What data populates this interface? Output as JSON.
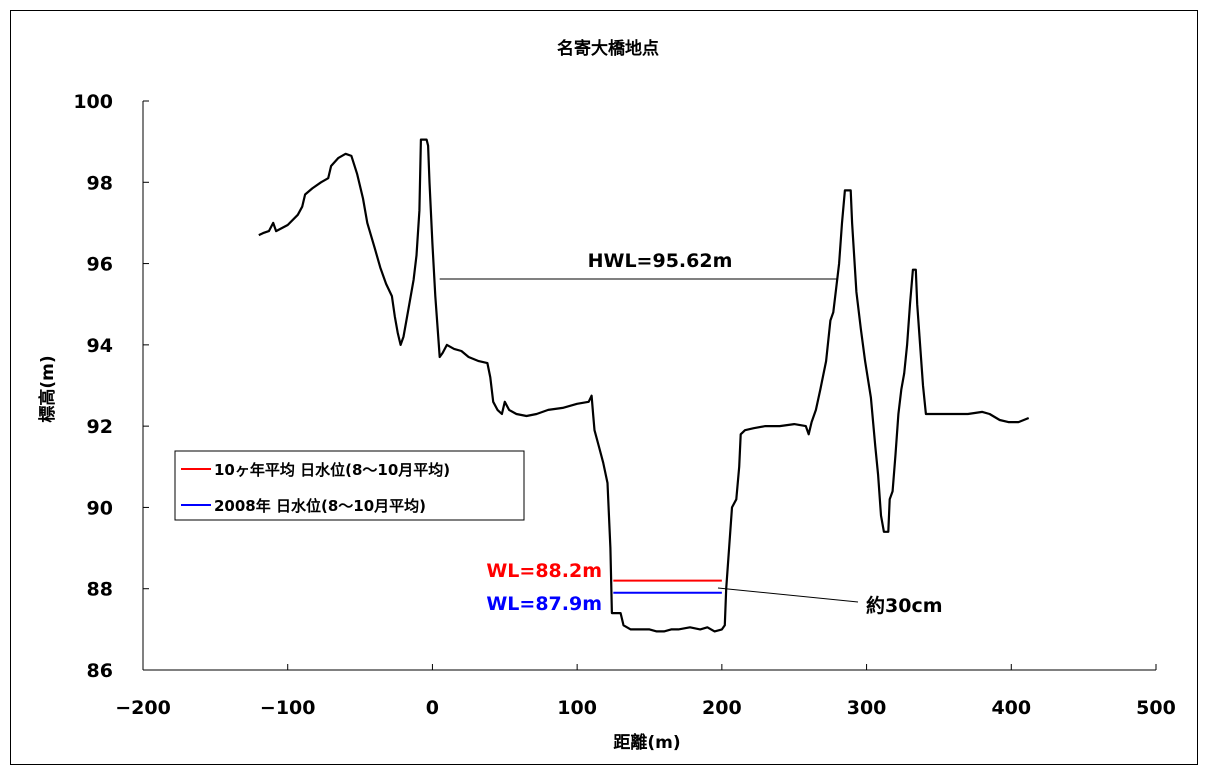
{
  "chart_data": {
    "type": "line",
    "title": "名寄大橋地点",
    "xlabel": "距離(m)",
    "ylabel": "標高(m)",
    "xlim": [
      -200,
      500
    ],
    "ylim": [
      86,
      100
    ],
    "xticks": [
      -200,
      -100,
      0,
      100,
      200,
      300,
      400,
      500
    ],
    "yticks": [
      86,
      88,
      90,
      92,
      94,
      96,
      98,
      100
    ],
    "grid": false,
    "legend_position": "left-middle",
    "series": [
      {
        "kind": "profile",
        "color": "#000000",
        "points": [
          [
            -120,
            96.7
          ],
          [
            -117,
            96.75
          ],
          [
            -113,
            96.8
          ],
          [
            -110,
            97.0
          ],
          [
            -108,
            96.8
          ],
          [
            -100,
            96.95
          ],
          [
            -93,
            97.2
          ],
          [
            -90,
            97.4
          ],
          [
            -88,
            97.7
          ],
          [
            -83,
            97.85
          ],
          [
            -77,
            98.0
          ],
          [
            -72,
            98.1
          ],
          [
            -70,
            98.4
          ],
          [
            -65,
            98.6
          ],
          [
            -60,
            98.7
          ],
          [
            -56,
            98.65
          ],
          [
            -52,
            98.2
          ],
          [
            -48,
            97.6
          ],
          [
            -45,
            97.0
          ],
          [
            -40,
            96.4
          ],
          [
            -36,
            95.9
          ],
          [
            -32,
            95.5
          ],
          [
            -28,
            95.2
          ],
          [
            -26,
            94.7
          ],
          [
            -24,
            94.3
          ],
          [
            -22,
            94.0
          ],
          [
            -20,
            94.2
          ],
          [
            -18,
            94.6
          ],
          [
            -16,
            95.0
          ],
          [
            -13,
            95.6
          ],
          [
            -11,
            96.2
          ],
          [
            -9,
            97.3
          ],
          [
            -8,
            99.05
          ],
          [
            -4,
            99.05
          ],
          [
            -3,
            98.9
          ],
          [
            -2,
            98.0
          ],
          [
            0,
            96.5
          ],
          [
            2,
            95.2
          ],
          [
            5,
            93.7
          ],
          [
            7,
            93.8
          ],
          [
            10,
            94.0
          ],
          [
            15,
            93.9
          ],
          [
            20,
            93.85
          ],
          [
            25,
            93.7
          ],
          [
            32,
            93.6
          ],
          [
            38,
            93.55
          ],
          [
            40,
            93.2
          ],
          [
            42,
            92.6
          ],
          [
            45,
            92.4
          ],
          [
            48,
            92.3
          ],
          [
            50,
            92.6
          ],
          [
            53,
            92.4
          ],
          [
            58,
            92.3
          ],
          [
            65,
            92.25
          ],
          [
            72,
            92.3
          ],
          [
            80,
            92.4
          ],
          [
            90,
            92.45
          ],
          [
            100,
            92.55
          ],
          [
            108,
            92.6
          ],
          [
            110,
            92.75
          ],
          [
            111,
            92.3
          ],
          [
            112,
            91.9
          ],
          [
            115,
            91.5
          ],
          [
            118,
            91.1
          ],
          [
            121,
            90.6
          ],
          [
            123,
            89.0
          ],
          [
            124,
            87.4
          ],
          [
            130,
            87.4
          ],
          [
            132,
            87.1
          ],
          [
            137,
            87.0
          ],
          [
            143,
            87.0
          ],
          [
            150,
            87.0
          ],
          [
            155,
            86.95
          ],
          [
            160,
            86.95
          ],
          [
            165,
            87.0
          ],
          [
            170,
            87.0
          ],
          [
            178,
            87.05
          ],
          [
            185,
            87.0
          ],
          [
            190,
            87.05
          ],
          [
            195,
            86.95
          ],
          [
            200,
            87.0
          ],
          [
            202,
            87.1
          ],
          [
            203,
            88.0
          ],
          [
            205,
            89.0
          ],
          [
            207,
            90.0
          ],
          [
            210,
            90.2
          ],
          [
            212,
            91.0
          ],
          [
            213,
            91.8
          ],
          [
            216,
            91.9
          ],
          [
            222,
            91.95
          ],
          [
            230,
            92.0
          ],
          [
            240,
            92.0
          ],
          [
            250,
            92.05
          ],
          [
            258,
            92.0
          ],
          [
            260,
            91.8
          ],
          [
            262,
            92.1
          ],
          [
            265,
            92.4
          ],
          [
            268,
            92.9
          ],
          [
            272,
            93.6
          ],
          [
            275,
            94.6
          ],
          [
            277,
            94.8
          ],
          [
            279,
            95.4
          ],
          [
            281,
            96.0
          ],
          [
            283,
            97.0
          ],
          [
            285,
            97.8
          ],
          [
            289,
            97.8
          ],
          [
            290,
            97.0
          ],
          [
            293,
            95.3
          ],
          [
            296,
            94.4
          ],
          [
            299,
            93.6
          ],
          [
            303,
            92.7
          ],
          [
            306,
            91.5
          ],
          [
            308,
            90.8
          ],
          [
            310,
            89.8
          ],
          [
            312,
            89.4
          ],
          [
            315,
            89.4
          ],
          [
            316,
            90.2
          ],
          [
            318,
            90.4
          ],
          [
            320,
            91.3
          ],
          [
            322,
            92.3
          ],
          [
            324,
            92.9
          ],
          [
            326,
            93.3
          ],
          [
            328,
            94.0
          ],
          [
            330,
            95.0
          ],
          [
            332,
            95.85
          ],
          [
            334,
            95.85
          ],
          [
            335,
            95.0
          ],
          [
            337,
            94.0
          ],
          [
            339,
            93.0
          ],
          [
            341,
            92.3
          ],
          [
            350,
            92.3
          ],
          [
            360,
            92.3
          ],
          [
            370,
            92.3
          ],
          [
            380,
            92.35
          ],
          [
            385,
            92.3
          ],
          [
            392,
            92.15
          ],
          [
            398,
            92.1
          ],
          [
            405,
            92.1
          ],
          [
            412,
            92.2
          ]
        ]
      },
      {
        "name": "10ヶ年平均 日水位(8～10月平均)",
        "kind": "level",
        "color": "#ff0000",
        "x": [
          125,
          200
        ],
        "y": 88.2
      },
      {
        "name": "2008年 日水位(8～10月平均)",
        "kind": "level",
        "color": "#0000ff",
        "x": [
          125,
          200
        ],
        "y": 87.9
      }
    ],
    "hwl": {
      "x": [
        5,
        280
      ],
      "y": 95.62,
      "label": "HWL=95.62m"
    },
    "annotations": {
      "wl_red": "WL=88.2m",
      "wl_blue": "WL=87.9m",
      "diff": "約30cm"
    }
  }
}
